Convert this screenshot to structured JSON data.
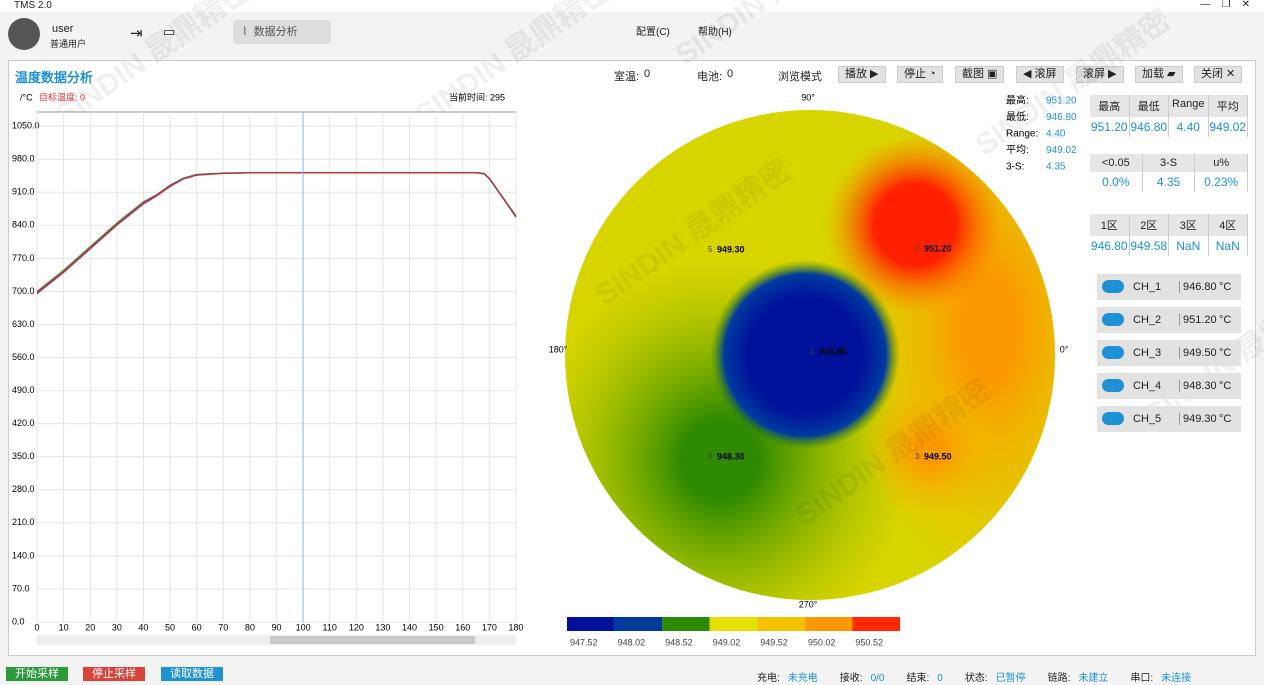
{
  "window": {
    "title": "TMS 2.0"
  },
  "user": {
    "name": "user",
    "role": "普通用户"
  },
  "nav": {
    "tab": "数据分析",
    "menu_config": "配置(C)",
    "menu_help": "帮助(H)"
  },
  "toolbar": {
    "title": "温度数据分析",
    "room_label": "室温:",
    "room_value": "0",
    "battery_label": "电池:",
    "battery_value": "0",
    "browse": "浏览模式",
    "play": "播放",
    "stop": "停止",
    "shot": "截图",
    "scroll_left": "滚屏",
    "scroll_right": "滚屏",
    "load": "加载",
    "close": "关闭"
  },
  "watermark": "SINDIN 晟鼎精密",
  "chart_data": {
    "type": "line",
    "y_label": "/°C",
    "target": "目标温度: 0",
    "current": "当前时间: 295",
    "x": [
      0,
      10,
      20,
      30,
      40,
      45,
      50,
      55,
      60,
      70,
      80,
      100,
      120,
      140,
      160,
      165,
      168,
      170,
      175,
      180
    ],
    "series": [
      {
        "color": "#3a9a3a",
        "values": [
          700,
          745,
          795,
          845,
          890,
          905,
          925,
          940,
          948,
          951,
          952,
          952,
          952,
          952,
          952,
          952,
          950,
          940,
          900,
          860
        ]
      },
      {
        "color": "#8a4aa0",
        "values": [
          695,
          740,
          790,
          840,
          885,
          902,
          922,
          938,
          946,
          950,
          951,
          951,
          951,
          951,
          951,
          951,
          949,
          938,
          898,
          857
        ]
      },
      {
        "color": "#c03030",
        "values": [
          698,
          742,
          792,
          842,
          888,
          904,
          924,
          939,
          947,
          950,
          951,
          951,
          951,
          951,
          951,
          951,
          950,
          939,
          899,
          858
        ]
      }
    ],
    "xlim": [
      0,
      180
    ],
    "ylim": [
      0,
      1080
    ],
    "cursor_x": 100,
    "grid": true,
    "xticks": [
      0,
      10,
      20,
      30,
      40,
      50,
      60,
      70,
      80,
      90,
      100,
      110,
      120,
      130,
      140,
      150,
      160,
      170,
      180
    ],
    "yticks": [
      {
        "value": 0,
        "label": "0.0"
      },
      {
        "value": 70,
        "label": "70.0"
      },
      {
        "value": 140,
        "label": "140.0"
      },
      {
        "value": 210,
        "label": "210.0"
      },
      {
        "value": 280,
        "label": "280.0"
      },
      {
        "value": 350,
        "label": "350.0"
      },
      {
        "value": 420,
        "label": "420.0"
      },
      {
        "value": 490,
        "label": "490.0"
      },
      {
        "value": 560,
        "label": "560.0"
      },
      {
        "value": 630,
        "label": "630.0"
      },
      {
        "value": 700,
        "label": "700.0"
      },
      {
        "value": 770,
        "label": "770.0"
      },
      {
        "value": 840,
        "label": "840.0"
      },
      {
        "value": 910,
        "label": "910.0"
      },
      {
        "value": 980,
        "label": "980.0"
      },
      {
        "value": 1050,
        "label": "1050.0"
      }
    ]
  },
  "map": {
    "angles": [
      "90°",
      "180°",
      "0°",
      "270°"
    ],
    "stats": [
      [
        "最高:",
        "951.20"
      ],
      [
        "最低:",
        "946.80"
      ],
      [
        "Range:",
        "4.40"
      ],
      [
        "平均:",
        "949.02"
      ],
      [
        "3-S:",
        "4.35"
      ]
    ],
    "points": [
      {
        "id": "1",
        "value": "946.80"
      },
      {
        "id": "2",
        "value": "951.20"
      },
      {
        "id": "3",
        "value": "949.50"
      },
      {
        "id": "4",
        "value": "948.30"
      },
      {
        "id": "5",
        "value": "949.30"
      }
    ],
    "colorbar": {
      "colors": [
        "#00129a",
        "#003a9e",
        "#2e8a00",
        "#e6e000",
        "#f5c000",
        "#fa9a00",
        "#ff2a00"
      ],
      "labels": [
        "947.52",
        "948.02",
        "948.52",
        "949.02",
        "949.52",
        "950.02",
        "950.52"
      ]
    }
  },
  "tables": [
    {
      "header": [
        "最高",
        "最低",
        "Range",
        "平均"
      ],
      "values": [
        "951.20",
        "946.80",
        "4.40",
        "949.02"
      ]
    },
    {
      "header": [
        "<0.05",
        "3-S",
        "u%"
      ],
      "values": [
        "0.0%",
        "4.35",
        "0.23%"
      ]
    },
    {
      "header": [
        "1区",
        "2区",
        "3区",
        "4区"
      ],
      "values": [
        "946.80",
        "949.58",
        "NaN",
        "NaN"
      ]
    }
  ],
  "channels": [
    {
      "name": "CH_1",
      "value": "946.80"
    },
    {
      "name": "CH_2",
      "value": "951.20"
    },
    {
      "name": "CH_3",
      "value": "949.50"
    },
    {
      "name": "CH_4",
      "value": "948.30"
    },
    {
      "name": "CH_5",
      "value": "949.30"
    }
  ],
  "unit": "°C",
  "bottom": {
    "start": "开始采样",
    "stop": "停止采样",
    "read": "读取数据",
    "status": [
      [
        "充电:",
        "未充电"
      ],
      [
        "接收:",
        "0/0"
      ],
      [
        "结束:",
        "0"
      ],
      [
        "状态:",
        "已暂停"
      ],
      [
        "链路:",
        "未建立"
      ],
      [
        "串口:",
        "未连接"
      ]
    ]
  }
}
